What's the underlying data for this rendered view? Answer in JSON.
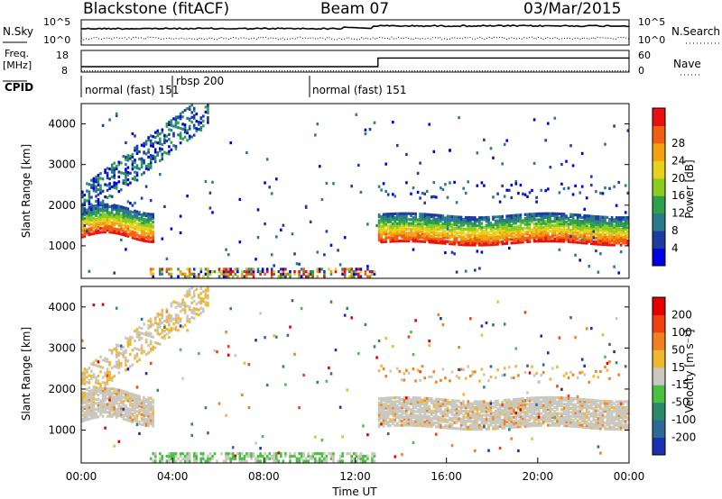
{
  "header": {
    "station": "Blackstone (fitACF)",
    "beam": "Beam 07",
    "date": "03/Mar/2015"
  },
  "chart_data": [
    {
      "type": "line",
      "panel": "noise",
      "left_label": "N.Sky",
      "right_label": "N.Search",
      "left_ticks": [
        "10^5",
        "10^0"
      ],
      "right_ticks": [
        "10^5",
        "10^0"
      ],
      "series": [
        {
          "name": "N.Sky",
          "style": "solid"
        },
        {
          "name": "N.Search",
          "style": "dotted"
        }
      ]
    },
    {
      "type": "line",
      "panel": "frequency",
      "left_label": "Freq.",
      "left_unit": "[MHz]",
      "right_label": "Nave",
      "left_ticks": [
        "18",
        "8"
      ],
      "right_ticks": [
        "60",
        "0"
      ],
      "freq_steps": [
        [
          0,
          10.5
        ],
        [
          13.0,
          10.5
        ],
        [
          13.0,
          14.5
        ],
        [
          24,
          14.5
        ]
      ],
      "nave_steps": [
        [
          0,
          3
        ],
        [
          24,
          3
        ]
      ]
    },
    {
      "type": "table",
      "panel": "cpid",
      "label": "CPID",
      "segments": [
        {
          "start": 0.0,
          "text": "normal (fast) 151"
        },
        {
          "start": 3.9,
          "text": "rbsp 200"
        },
        {
          "start": 10.0,
          "text": "normal (fast) 151"
        }
      ]
    },
    {
      "type": "heatmap",
      "panel": "power",
      "ylabel": "Slant Range [km]",
      "xlim": [
        0,
        24
      ],
      "ylim": [
        200,
        4500
      ],
      "yticks": [
        1000,
        2000,
        3000,
        4000
      ],
      "colorbar": {
        "label": "Power [dB]",
        "ticks": [
          "4",
          "8",
          "12",
          "16",
          "20",
          "24",
          "28"
        ],
        "colors": [
          "#0000e0",
          "#1c3ca0",
          "#2a7a8a",
          "#2fa04a",
          "#8ccc20",
          "#e6d21a",
          "#f5a010",
          "#f06010",
          "#e81010"
        ]
      }
    },
    {
      "type": "heatmap",
      "panel": "velocity",
      "ylabel": "Slant Range [km]",
      "xlabel": "Time UT",
      "xlim": [
        0,
        24
      ],
      "ylim": [
        200,
        4500
      ],
      "yticks": [
        1000,
        2000,
        3000,
        4000
      ],
      "xticks": [
        "00:00",
        "04:00",
        "08:00",
        "12:00",
        "16:00",
        "20:00",
        "00:00"
      ],
      "colorbar": {
        "label": "Velocity [m s⁻¹]",
        "ticks": [
          "200",
          "100",
          "50",
          "15",
          "-15",
          "-50",
          "-100",
          "-200"
        ],
        "colors": [
          "#1a30b0",
          "#2d6a9a",
          "#2a8a6a",
          "#49c040",
          "#c8c8c0",
          "#f0b830",
          "#f08020",
          "#f04010",
          "#e00000"
        ]
      }
    }
  ]
}
